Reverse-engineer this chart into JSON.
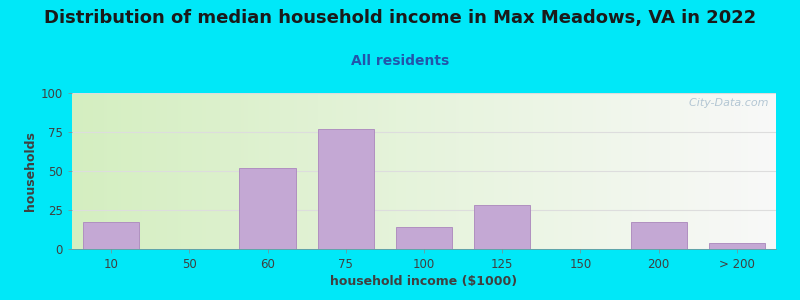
{
  "title": "Distribution of median household income in Max Meadows, VA in 2022",
  "subtitle": "All residents",
  "xlabel": "household income ($1000)",
  "ylabel": "households",
  "bar_labels": [
    "10",
    "50",
    "60",
    "75",
    "100",
    "125",
    "150",
    "200",
    "> 200"
  ],
  "bar_heights": [
    17,
    0,
    52,
    77,
    14,
    28,
    0,
    17,
    4
  ],
  "bar_color": "#c4a8d4",
  "bar_edgecolor": "#b090c0",
  "ylim": [
    0,
    100
  ],
  "yticks": [
    0,
    25,
    50,
    75,
    100
  ],
  "bg_outer": "#00e8f8",
  "bg_plot_left": "#d4eec0",
  "bg_plot_right": "#f8f8f8",
  "title_fontsize": 13,
  "subtitle_fontsize": 10,
  "axis_label_fontsize": 9,
  "watermark": "  City-Data.com"
}
